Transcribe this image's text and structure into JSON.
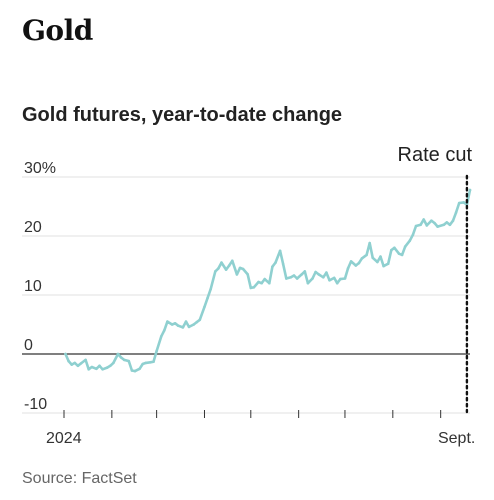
{
  "header": {
    "title": "Gold"
  },
  "chart_data": {
    "type": "line",
    "title": "Gold futures, year-to-date change",
    "source": "Source: FactSet",
    "xlabel": "",
    "ylabel": "",
    "ylim": [
      -10,
      30
    ],
    "yticks": [
      {
        "value": 30,
        "label": "30%"
      },
      {
        "value": 20,
        "label": "20"
      },
      {
        "value": 10,
        "label": "10"
      },
      {
        "value": 0,
        "label": "0"
      },
      {
        "value": -10,
        "label": "-10"
      }
    ],
    "xticks": [
      {
        "date": "2024-01-01",
        "label": "2024"
      },
      {
        "date": "2024-02-01",
        "label": ""
      },
      {
        "date": "2024-03-01",
        "label": ""
      },
      {
        "date": "2024-04-01",
        "label": ""
      },
      {
        "date": "2024-05-01",
        "label": ""
      },
      {
        "date": "2024-06-01",
        "label": ""
      },
      {
        "date": "2024-07-01",
        "label": ""
      },
      {
        "date": "2024-08-01",
        "label": ""
      },
      {
        "date": "2024-09-01",
        "label": "Sept."
      }
    ],
    "xlim": [
      "2024-01-01",
      "2024-09-20"
    ],
    "grid": true,
    "annotations": [
      {
        "date": "2024-09-18",
        "label": "Rate cut",
        "style": "dotted-vertical-line"
      }
    ],
    "colors": {
      "line": "#8fd0d0",
      "zero_line": "#333333",
      "grid": "#e0e0e0",
      "annotation": "#111111"
    },
    "series": [
      {
        "points": [
          [
            "2024-01-02",
            0.0
          ],
          [
            "2024-01-04",
            -1.2
          ],
          [
            "2024-01-06",
            -1.8
          ],
          [
            "2024-01-08",
            -1.5
          ],
          [
            "2024-01-10",
            -2.0
          ],
          [
            "2024-01-12",
            -1.6
          ],
          [
            "2024-01-15",
            -1.0
          ],
          [
            "2024-01-17",
            -2.6
          ],
          [
            "2024-01-19",
            -2.2
          ],
          [
            "2024-01-22",
            -2.5
          ],
          [
            "2024-01-24",
            -2.0
          ],
          [
            "2024-01-26",
            -2.6
          ],
          [
            "2024-01-29",
            -2.3
          ],
          [
            "2024-01-31",
            -2.0
          ],
          [
            "2024-02-02",
            -1.5
          ],
          [
            "2024-02-05",
            0.0
          ],
          [
            "2024-02-07",
            -0.6
          ],
          [
            "2024-02-09",
            -1.0
          ],
          [
            "2024-02-12",
            -1.2
          ],
          [
            "2024-02-14",
            -2.8
          ],
          [
            "2024-02-16",
            -2.9
          ],
          [
            "2024-02-19",
            -2.5
          ],
          [
            "2024-02-21",
            -1.7
          ],
          [
            "2024-02-23",
            -1.5
          ],
          [
            "2024-02-26",
            -1.4
          ],
          [
            "2024-02-28",
            -1.3
          ],
          [
            "2024-03-01",
            0.5
          ],
          [
            "2024-03-04",
            3.0
          ],
          [
            "2024-03-06",
            4.0
          ],
          [
            "2024-03-08",
            5.5
          ],
          [
            "2024-03-11",
            5.0
          ],
          [
            "2024-03-13",
            5.2
          ],
          [
            "2024-03-15",
            4.8
          ],
          [
            "2024-03-18",
            4.5
          ],
          [
            "2024-03-20",
            5.5
          ],
          [
            "2024-03-22",
            4.6
          ],
          [
            "2024-03-25",
            5.0
          ],
          [
            "2024-03-27",
            5.4
          ],
          [
            "2024-03-29",
            5.8
          ],
          [
            "2024-04-01",
            8.0
          ],
          [
            "2024-04-03",
            9.5
          ],
          [
            "2024-04-05",
            11.0
          ],
          [
            "2024-04-08",
            14.0
          ],
          [
            "2024-04-10",
            14.5
          ],
          [
            "2024-04-12",
            15.5
          ],
          [
            "2024-04-15",
            14.3
          ],
          [
            "2024-04-17",
            15.0
          ],
          [
            "2024-04-19",
            15.8
          ],
          [
            "2024-04-22",
            13.5
          ],
          [
            "2024-04-24",
            14.6
          ],
          [
            "2024-04-26",
            14.4
          ],
          [
            "2024-04-29",
            13.5
          ],
          [
            "2024-05-01",
            11.2
          ],
          [
            "2024-05-03",
            11.3
          ],
          [
            "2024-05-06",
            12.2
          ],
          [
            "2024-05-08",
            12.0
          ],
          [
            "2024-05-10",
            12.7
          ],
          [
            "2024-05-13",
            12.0
          ],
          [
            "2024-05-15",
            14.8
          ],
          [
            "2024-05-17",
            15.5
          ],
          [
            "2024-05-20",
            17.5
          ],
          [
            "2024-05-22",
            15.2
          ],
          [
            "2024-05-24",
            12.8
          ],
          [
            "2024-05-27",
            13.0
          ],
          [
            "2024-05-29",
            13.3
          ],
          [
            "2024-05-31",
            12.8
          ],
          [
            "2024-06-03",
            13.5
          ],
          [
            "2024-06-05",
            14.0
          ],
          [
            "2024-06-07",
            12.0
          ],
          [
            "2024-06-10",
            12.8
          ],
          [
            "2024-06-12",
            13.9
          ],
          [
            "2024-06-14",
            13.5
          ],
          [
            "2024-06-17",
            13.0
          ],
          [
            "2024-06-19",
            13.8
          ],
          [
            "2024-06-21",
            12.5
          ],
          [
            "2024-06-24",
            12.9
          ],
          [
            "2024-06-26",
            12.0
          ],
          [
            "2024-06-28",
            12.7
          ],
          [
            "2024-07-01",
            12.8
          ],
          [
            "2024-07-03",
            14.5
          ],
          [
            "2024-07-05",
            15.7
          ],
          [
            "2024-07-08",
            15.0
          ],
          [
            "2024-07-10",
            15.4
          ],
          [
            "2024-07-12",
            16.2
          ],
          [
            "2024-07-15",
            16.8
          ],
          [
            "2024-07-17",
            18.8
          ],
          [
            "2024-07-19",
            16.3
          ],
          [
            "2024-07-22",
            15.6
          ],
          [
            "2024-07-24",
            16.5
          ],
          [
            "2024-07-26",
            14.9
          ],
          [
            "2024-07-29",
            15.3
          ],
          [
            "2024-07-31",
            17.6
          ],
          [
            "2024-08-02",
            18.0
          ],
          [
            "2024-08-05",
            17.0
          ],
          [
            "2024-08-07",
            16.8
          ],
          [
            "2024-08-09",
            18.2
          ],
          [
            "2024-08-12",
            19.2
          ],
          [
            "2024-08-14",
            20.2
          ],
          [
            "2024-08-16",
            21.7
          ],
          [
            "2024-08-19",
            21.9
          ],
          [
            "2024-08-21",
            22.8
          ],
          [
            "2024-08-23",
            21.8
          ],
          [
            "2024-08-26",
            22.6
          ],
          [
            "2024-08-28",
            22.2
          ],
          [
            "2024-08-30",
            21.6
          ],
          [
            "2024-09-03",
            21.9
          ],
          [
            "2024-09-05",
            22.3
          ],
          [
            "2024-09-07",
            21.9
          ],
          [
            "2024-09-09",
            22.6
          ],
          [
            "2024-09-11",
            24.0
          ],
          [
            "2024-09-13",
            25.6
          ],
          [
            "2024-09-16",
            25.7
          ],
          [
            "2024-09-18",
            25.3
          ],
          [
            "2024-09-20",
            27.8
          ]
        ]
      }
    ]
  }
}
